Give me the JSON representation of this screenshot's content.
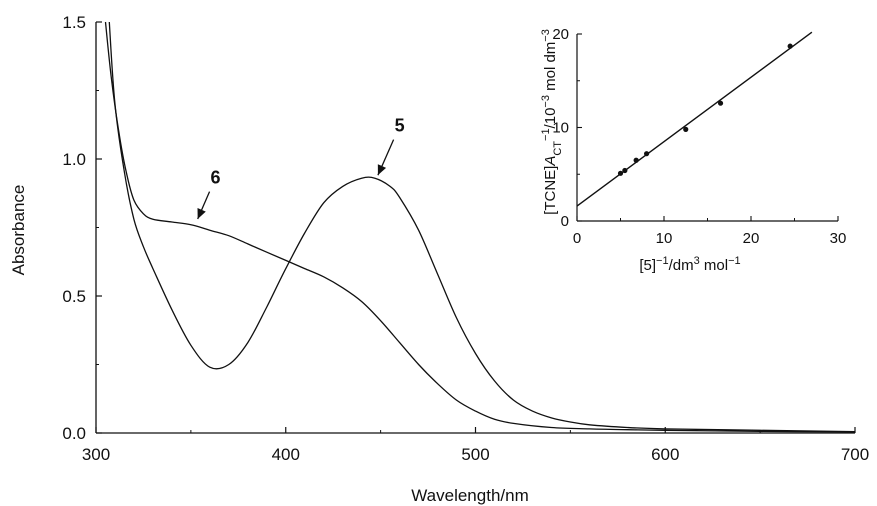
{
  "chart_data": [
    {
      "type": "line",
      "xlabel": "Wavelength/nm",
      "ylabel": "Absorbance",
      "xlim": [
        300,
        700
      ],
      "ylim": [
        0,
        1.5
      ],
      "x_ticks": [
        "300",
        "400",
        "500",
        "600",
        "700"
      ],
      "y_ticks": [
        "0.0",
        "0.5",
        "1.0",
        "1.5"
      ],
      "series": [
        {
          "name": "5",
          "x": [
            307,
            310,
            315,
            320,
            325,
            330,
            340,
            350,
            360,
            370,
            380,
            390,
            400,
            410,
            420,
            430,
            440,
            447,
            455,
            460,
            470,
            480,
            490,
            500,
            510,
            520,
            530,
            540,
            550,
            560,
            580,
            600,
            650,
            700
          ],
          "y": [
            1.5,
            1.2,
            0.95,
            0.78,
            0.68,
            0.6,
            0.45,
            0.32,
            0.24,
            0.25,
            0.33,
            0.46,
            0.6,
            0.73,
            0.84,
            0.9,
            0.93,
            0.93,
            0.9,
            0.86,
            0.74,
            0.58,
            0.42,
            0.29,
            0.19,
            0.12,
            0.08,
            0.055,
            0.04,
            0.03,
            0.02,
            0.015,
            0.01,
            0.005
          ]
        },
        {
          "name": "6",
          "x": [
            305,
            308,
            312,
            316,
            320,
            325,
            330,
            340,
            350,
            360,
            370,
            380,
            390,
            400,
            410,
            420,
            430,
            440,
            450,
            460,
            470,
            480,
            490,
            500,
            510,
            520,
            540,
            560,
            580,
            600,
            650,
            700
          ],
          "y": [
            1.5,
            1.3,
            1.1,
            0.95,
            0.85,
            0.8,
            0.78,
            0.77,
            0.76,
            0.74,
            0.72,
            0.69,
            0.66,
            0.63,
            0.6,
            0.57,
            0.53,
            0.48,
            0.41,
            0.33,
            0.25,
            0.18,
            0.12,
            0.08,
            0.05,
            0.035,
            0.02,
            0.015,
            0.012,
            0.01,
            0.006,
            0.004
          ]
        }
      ],
      "annotations": [
        {
          "label": "5",
          "arrow_to_x": 447,
          "arrow_to_y": 0.93,
          "text_x": 460,
          "text_y": 1.1
        },
        {
          "label": "6",
          "arrow_to_x": 352,
          "arrow_to_y": 0.77,
          "text_x": 363,
          "text_y": 0.91
        }
      ]
    },
    {
      "type": "scatter",
      "xlabel_parts": [
        "[5]",
        "−1",
        "/dm",
        "3",
        " mol",
        "−1"
      ],
      "ylabel_parts": [
        "[TCNE]",
        "A",
        "CT",
        "−1",
        "/10",
        "−3",
        " mol dm",
        "−3"
      ],
      "xlim": [
        0,
        30
      ],
      "ylim": [
        0,
        20
      ],
      "x_ticks": [
        "0",
        "10",
        "20",
        "30"
      ],
      "y_ticks": [
        "0",
        "10",
        "20"
      ],
      "points": {
        "x": [
          5.0,
          5.5,
          6.8,
          8.0,
          12.5,
          16.5,
          24.5
        ],
        "y": [
          5.1,
          5.4,
          6.5,
          7.2,
          9.8,
          12.6,
          18.7
        ]
      },
      "fit_line": {
        "x": [
          0,
          27
        ],
        "y": [
          1.6,
          20.2
        ]
      }
    }
  ]
}
